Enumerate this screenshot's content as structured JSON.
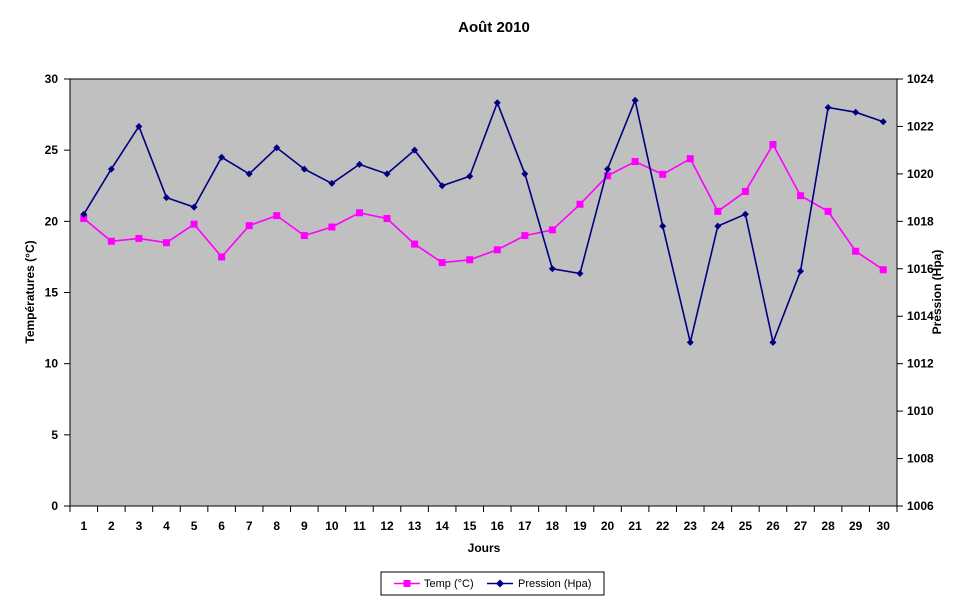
{
  "chart_data": {
    "type": "line",
    "title": "Août 2010",
    "xlabel": "Jours",
    "ylabel_left": "Températures (°C)",
    "ylabel_right": "Pression (Hpa)",
    "categories": [
      "1",
      "2",
      "3",
      "4",
      "5",
      "6",
      "7",
      "8",
      "9",
      "10",
      "11",
      "12",
      "13",
      "14",
      "15",
      "16",
      "17",
      "18",
      "19",
      "20",
      "21",
      "22",
      "23",
      "24",
      "25",
      "26",
      "27",
      "28",
      "29",
      "30"
    ],
    "y_left": {
      "min": 0,
      "max": 30,
      "ticks": [
        0,
        5,
        10,
        15,
        20,
        25,
        30
      ]
    },
    "y_right": {
      "min": 1006,
      "max": 1024,
      "ticks": [
        1006,
        1008,
        1010,
        1012,
        1014,
        1016,
        1018,
        1020,
        1022,
        1024
      ]
    },
    "legend_position": "bottom",
    "plot_background": "#c0c0c0",
    "series": [
      {
        "name": "Temp (°C)",
        "axis": "left",
        "color": "#ff00ff",
        "marker": "square",
        "values": [
          20.2,
          18.6,
          18.8,
          18.5,
          19.8,
          17.5,
          19.7,
          20.4,
          19.0,
          19.6,
          20.6,
          20.2,
          18.4,
          17.1,
          17.3,
          18.0,
          19.0,
          19.4,
          21.2,
          23.2,
          24.2,
          23.3,
          24.4,
          20.7,
          22.1,
          25.4,
          21.8,
          20.7,
          17.9,
          16.6
        ]
      },
      {
        "name": "Pression (Hpa)",
        "axis": "right",
        "color": "#000080",
        "marker": "diamond",
        "values": [
          1018.3,
          1020.2,
          1022.0,
          1019.0,
          1018.6,
          1020.7,
          1020.0,
          1021.1,
          1020.2,
          1019.6,
          1020.4,
          1020.0,
          1021.0,
          1019.5,
          1019.9,
          1023.0,
          1020.0,
          1016.0,
          1015.8,
          1020.2,
          1023.1,
          1017.8,
          1012.9,
          1017.8,
          1018.3,
          1012.9,
          1015.9,
          1022.8,
          1022.6,
          1022.2
        ]
      }
    ]
  }
}
